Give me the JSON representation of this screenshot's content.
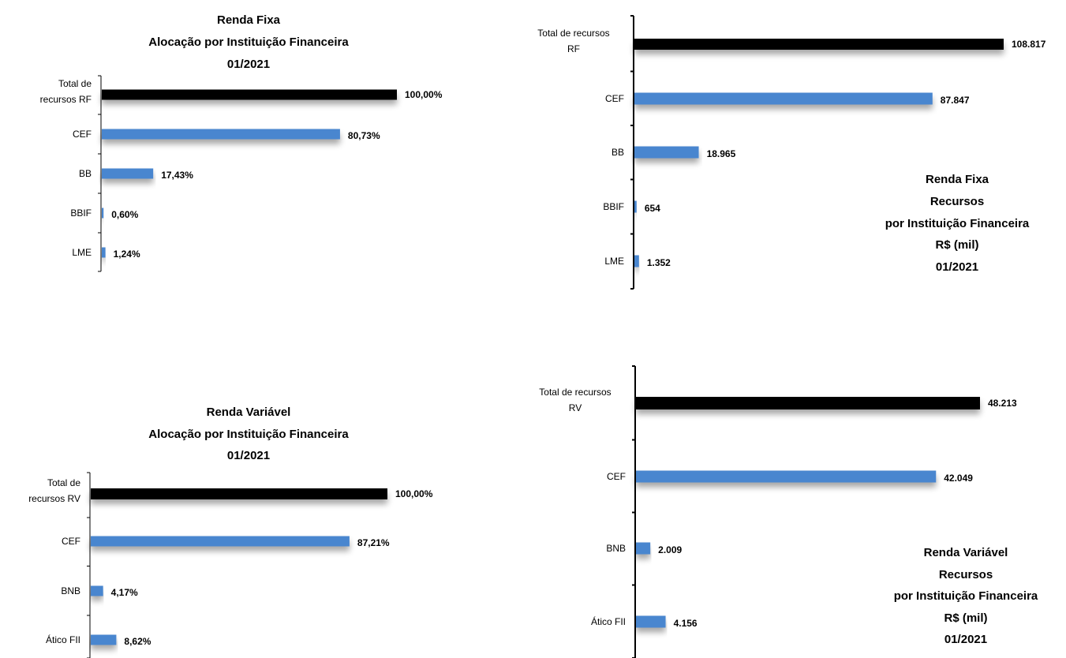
{
  "colors": {
    "total": "#000000",
    "bar": "#4a86cf"
  },
  "chart_data": [
    {
      "type": "bar",
      "orientation": "horizontal",
      "title_lines": [
        "Renda Fixa",
        "Alocação por Instituição Financeira",
        "01/2021"
      ],
      "categories": [
        [
          "Total de",
          "recursos RF"
        ],
        [
          "CEF"
        ],
        [
          "BB"
        ],
        [
          "BBIF"
        ],
        [
          "LME"
        ]
      ],
      "values": [
        100.0,
        80.73,
        17.43,
        0.6,
        1.24
      ],
      "labels": [
        "100,00%",
        "80,73%",
        "17,43%",
        "0,60%",
        "1,24%"
      ],
      "xlim": [
        0,
        100
      ]
    },
    {
      "type": "bar",
      "orientation": "horizontal",
      "title_lines": [
        "Renda Fixa",
        "Recursos",
        "por Instituição Financeira",
        "R$ (mil)",
        "01/2021"
      ],
      "categories": [
        [
          "Total de recursos",
          "RF"
        ],
        [
          "CEF"
        ],
        [
          "BB"
        ],
        [
          "BBIF"
        ],
        [
          "LME"
        ]
      ],
      "values": [
        108817,
        87847,
        18965,
        654,
        1352
      ],
      "labels": [
        "108.817",
        "87.847",
        "18.965",
        "654",
        "1.352"
      ],
      "xlim": [
        0,
        108817
      ]
    },
    {
      "type": "bar",
      "orientation": "horizontal",
      "title_lines": [
        "Renda Variável",
        "Alocação por Instituição Financeira",
        "01/2021"
      ],
      "categories": [
        [
          "Total de",
          "recursos RV"
        ],
        [
          "CEF"
        ],
        [
          "BNB"
        ],
        [
          "Ático FII"
        ]
      ],
      "values": [
        100.0,
        87.21,
        4.17,
        8.62
      ],
      "labels": [
        "100,00%",
        "87,21%",
        "4,17%",
        "8,62%"
      ],
      "xlim": [
        0,
        100
      ]
    },
    {
      "type": "bar",
      "orientation": "horizontal",
      "title_lines": [
        "Renda Variável",
        "Recursos",
        "por Instituição Financeira",
        "R$ (mil)",
        "01/2021"
      ],
      "categories": [
        [
          "Total de recursos",
          "RV"
        ],
        [
          "CEF"
        ],
        [
          "BNB"
        ],
        [
          "Ático FII"
        ]
      ],
      "values": [
        48213,
        42049,
        2009,
        4156
      ],
      "labels": [
        "48.213",
        "42.049",
        "2.009",
        "4.156"
      ],
      "xlim": [
        0,
        48213
      ]
    }
  ]
}
